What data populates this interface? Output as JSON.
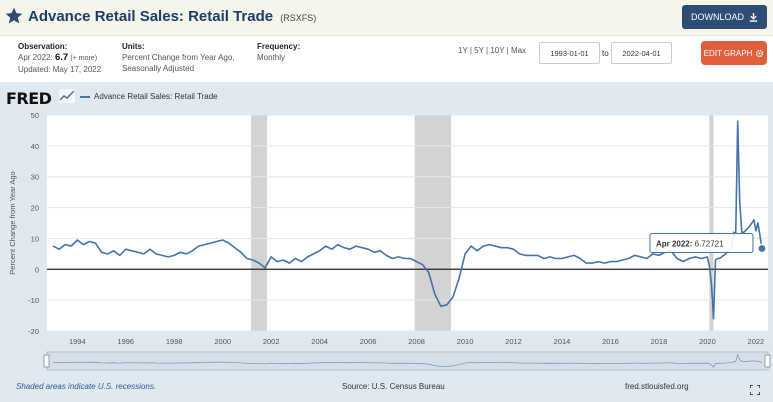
{
  "header": {
    "title": "Advance Retail Sales: Retail Trade",
    "series_id": "(RSXFS)",
    "download_label": "DOWNLOAD"
  },
  "meta": {
    "observation_label": "Observation:",
    "observation_date": "Apr 2022:",
    "observation_value": "6.7",
    "observation_more": "(+ more)",
    "updated": "Updated: May 17, 2022",
    "units_label": "Units:",
    "units_line1": "Percent Change from Year Ago,",
    "units_line2": "Seasonally Adjusted",
    "frequency_label": "Frequency:",
    "frequency_value": "Monthly",
    "range_options": "1Y | 5Y | 10Y | Max",
    "start_date": "1993-01-01",
    "to_label": "to",
    "end_date": "2022-04-01",
    "edit_label": "EDIT GRAPH"
  },
  "logo": "FRED",
  "footer": {
    "recession_note": "Shaded areas indicate U.S. recessions.",
    "source": "Source: U.S. Census Bureau",
    "site": "fred.stlouisfed.org"
  },
  "colors": {
    "series": "#4572a7",
    "recession": "#d3d3d3",
    "plot_bg": "#ffffff",
    "frame_bg": "#e1e9f0",
    "download": "#2d4d75",
    "edit": "#e0603e"
  },
  "icons": [
    "star-icon",
    "download-icon",
    "gear-icon",
    "fred-graph-icon",
    "expand-icon"
  ],
  "chart_data": {
    "type": "line",
    "title": "",
    "series": [
      {
        "name": "Advance Retail Sales: Retail Trade",
        "x": [
          1993.0,
          1993.25,
          1993.5,
          1993.75,
          1994.0,
          1994.25,
          1994.5,
          1994.75,
          1995.0,
          1995.25,
          1995.5,
          1995.75,
          1996.0,
          1996.25,
          1996.5,
          1996.75,
          1997.0,
          1997.25,
          1997.5,
          1997.75,
          1998.0,
          1998.25,
          1998.5,
          1998.75,
          1999.0,
          1999.25,
          1999.5,
          1999.75,
          2000.0,
          2000.25,
          2000.5,
          2000.75,
          2001.0,
          2001.25,
          2001.5,
          2001.75,
          2002.0,
          2002.25,
          2002.5,
          2002.75,
          2003.0,
          2003.25,
          2003.5,
          2003.75,
          2004.0,
          2004.25,
          2004.5,
          2004.75,
          2005.0,
          2005.25,
          2005.5,
          2005.75,
          2006.0,
          2006.25,
          2006.5,
          2006.75,
          2007.0,
          2007.25,
          2007.5,
          2007.75,
          2008.0,
          2008.25,
          2008.5,
          2008.75,
          2009.0,
          2009.25,
          2009.5,
          2009.75,
          2010.0,
          2010.25,
          2010.5,
          2010.75,
          2011.0,
          2011.25,
          2011.5,
          2011.75,
          2012.0,
          2012.25,
          2012.5,
          2012.75,
          2013.0,
          2013.25,
          2013.5,
          2013.75,
          2014.0,
          2014.25,
          2014.5,
          2014.75,
          2015.0,
          2015.25,
          2015.5,
          2015.75,
          2016.0,
          2016.25,
          2016.5,
          2016.75,
          2017.0,
          2017.25,
          2017.5,
          2017.75,
          2018.0,
          2018.25,
          2018.5,
          2018.75,
          2019.0,
          2019.25,
          2019.5,
          2019.75,
          2020.0,
          2020.083,
          2020.167,
          2020.25,
          2020.333,
          2020.417,
          2020.5,
          2020.75,
          2021.0,
          2021.083,
          2021.167,
          2021.25,
          2021.333,
          2021.417,
          2021.5,
          2021.75,
          2021.917,
          2022.0,
          2022.083,
          2022.167,
          2022.25
        ],
        "values": [
          7.5,
          6.5,
          8.0,
          7.5,
          9.5,
          8.0,
          9.0,
          8.5,
          5.5,
          5.0,
          6.0,
          4.5,
          6.5,
          6.0,
          5.5,
          5.0,
          6.5,
          5.0,
          4.5,
          4.0,
          4.5,
          5.5,
          5.0,
          6.0,
          7.5,
          8.0,
          8.5,
          9.0,
          9.5,
          8.5,
          7.0,
          5.5,
          3.5,
          3.0,
          2.0,
          0.5,
          4.0,
          2.5,
          3.0,
          2.0,
          3.5,
          2.5,
          4.0,
          5.0,
          6.0,
          7.5,
          6.5,
          8.0,
          7.0,
          6.5,
          7.5,
          7.0,
          6.5,
          5.5,
          6.0,
          4.5,
          3.5,
          4.0,
          3.5,
          3.5,
          2.5,
          1.5,
          -1.0,
          -8.0,
          -12.0,
          -11.5,
          -9.0,
          -3.0,
          5.0,
          7.5,
          6.0,
          7.5,
          8.0,
          7.5,
          7.0,
          7.0,
          6.5,
          5.0,
          4.5,
          4.5,
          4.5,
          3.5,
          4.0,
          3.5,
          3.5,
          4.0,
          4.5,
          3.5,
          2.0,
          2.0,
          2.5,
          2.0,
          2.5,
          2.5,
          3.0,
          3.5,
          4.5,
          4.0,
          3.5,
          5.0,
          4.5,
          5.5,
          6.0,
          3.5,
          2.5,
          3.5,
          4.0,
          3.5,
          4.0,
          1.0,
          -5.0,
          -16.0,
          3.0,
          3.5,
          3.5,
          5.0,
          7.0,
          12.0,
          11.0,
          48.0,
          22.0,
          12.0,
          12.0,
          14.0,
          16.0,
          12.5,
          15.0,
          11.0,
          6.73
        ]
      }
    ],
    "recessions": [
      [
        2001.17,
        2001.83
      ],
      [
        2007.92,
        2009.42
      ],
      [
        2020.08,
        2020.25
      ]
    ],
    "xlabel": "",
    "ylabel": "Percent Change from Year Ago",
    "xlim": [
      1992.75,
      2022.5
    ],
    "ylim": [
      -20,
      50
    ],
    "yticks": [
      -20,
      -10,
      0,
      10,
      20,
      30,
      40,
      50
    ],
    "xticks": [
      1994,
      1996,
      1998,
      2000,
      2002,
      2004,
      2006,
      2008,
      2010,
      2012,
      2014,
      2016,
      2018,
      2020,
      2022
    ],
    "grid": true,
    "legend": "top-left",
    "tooltip": {
      "label": "Apr 2022:",
      "value": "6.72721",
      "x": 2022.25,
      "y": 6.72721
    }
  }
}
